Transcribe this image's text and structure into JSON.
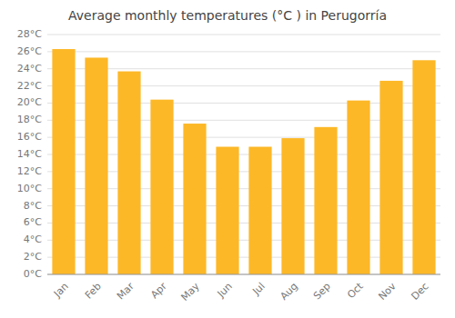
{
  "chart_data": {
    "type": "bar",
    "title": "Average monthly temperatures (°C ) in Perugorría",
    "categories": [
      "Jan",
      "Feb",
      "Mar",
      "Apr",
      "May",
      "Jun",
      "Jul",
      "Aug",
      "Sep",
      "Oct",
      "Nov",
      "Dec"
    ],
    "values": [
      26.3,
      25.3,
      23.7,
      20.4,
      17.6,
      14.9,
      14.9,
      15.9,
      17.2,
      20.3,
      22.6,
      25.0
    ],
    "color": "#FDB827",
    "ylim": [
      0,
      28
    ],
    "yticks": [
      {
        "value": 0,
        "label": "0°C"
      },
      {
        "value": 2,
        "label": "2°C"
      },
      {
        "value": 4,
        "label": "4°C"
      },
      {
        "value": 6,
        "label": "6°C"
      },
      {
        "value": 8,
        "label": "8°C"
      },
      {
        "value": 10,
        "label": "10°C"
      },
      {
        "value": 12,
        "label": "12°C"
      },
      {
        "value": 14,
        "label": "14°C"
      },
      {
        "value": 16,
        "label": "16°C"
      },
      {
        "value": 18,
        "label": "18°C"
      },
      {
        "value": 20,
        "label": "20°C"
      },
      {
        "value": 22,
        "label": "22°C"
      },
      {
        "value": 24,
        "label": "24°C"
      },
      {
        "value": 26,
        "label": "26°C"
      },
      {
        "value": 28,
        "label": "28°C"
      }
    ],
    "grid": true
  }
}
